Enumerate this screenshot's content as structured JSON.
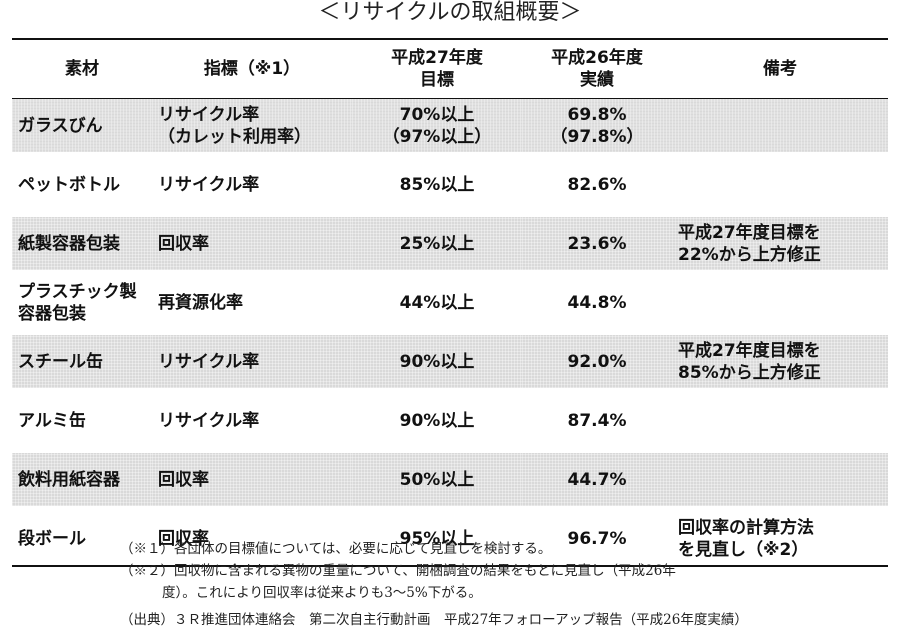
{
  "title": "＜リサイクルの取組概要＞",
  "table": {
    "headers": {
      "material": "素材",
      "indicator": "指標（※1）",
      "target_line1": "平成27年度",
      "target_line2": "目標",
      "actual_line1": "平成26年度",
      "actual_line2": "実績",
      "remarks": "備考"
    },
    "rows": [
      {
        "material": "ガラスびん",
        "material2": "",
        "indicator": "リサイクル率",
        "indicator2": "（カレット利用率）",
        "target": "70%以上",
        "target2": "（97%以上）",
        "actual": "69.8%",
        "actual2": "（97.8%）",
        "remarks": "",
        "remarks2": ""
      },
      {
        "material": "ペットボトル",
        "material2": "",
        "indicator": "リサイクル率",
        "indicator2": "",
        "target": "85%以上",
        "target2": "",
        "actual": "82.6%",
        "actual2": "",
        "remarks": "",
        "remarks2": ""
      },
      {
        "material": "紙製容器包装",
        "material2": "",
        "indicator": "回収率",
        "indicator2": "",
        "target": "25%以上",
        "target2": "",
        "actual": "23.6%",
        "actual2": "",
        "remarks": "平成27年度目標を",
        "remarks2": "22%から上方修正"
      },
      {
        "material": "プラスチック製",
        "material2": "容器包装",
        "indicator": "再資源化率",
        "indicator2": "",
        "target": "44%以上",
        "target2": "",
        "actual": "44.8%",
        "actual2": "",
        "remarks": "",
        "remarks2": ""
      },
      {
        "material": "スチール缶",
        "material2": "",
        "indicator": "リサイクル率",
        "indicator2": "",
        "target": "90%以上",
        "target2": "",
        "actual": "92.0%",
        "actual2": "",
        "remarks": "平成27年度目標を",
        "remarks2": "85%から上方修正"
      },
      {
        "material": "アルミ缶",
        "material2": "",
        "indicator": "リサイクル率",
        "indicator2": "",
        "target": "90%以上",
        "target2": "",
        "actual": "87.4%",
        "actual2": "",
        "remarks": "",
        "remarks2": ""
      },
      {
        "material": "飲料用紙容器",
        "material2": "",
        "indicator": "回収率",
        "indicator2": "",
        "target": "50%以上",
        "target2": "",
        "actual": "44.7%",
        "actual2": "",
        "remarks": "",
        "remarks2": ""
      },
      {
        "material": "段ボール",
        "material2": "",
        "indicator": "回収率",
        "indicator2": "",
        "target": "95%以上",
        "target2": "",
        "actual": "96.7%",
        "actual2": "",
        "remarks": "回収率の計算方法",
        "remarks2": "を見直し（※2）"
      }
    ]
  },
  "notes": {
    "note1": "（※１）各団体の目標値については、必要に応じて見直しを検討する。",
    "note2_line1": "（※２）回収物に含まれる異物の重量について、開梱調査の結果をもとに見直し（平成26年",
    "note2_line2": "度）。これにより回収率は従来よりも3～5%下がる。"
  },
  "source": "（出典）３Ｒ推進団体連絡会　第二次自主行動計画　平成27年フォローアップ報告（平成26年度実績）"
}
